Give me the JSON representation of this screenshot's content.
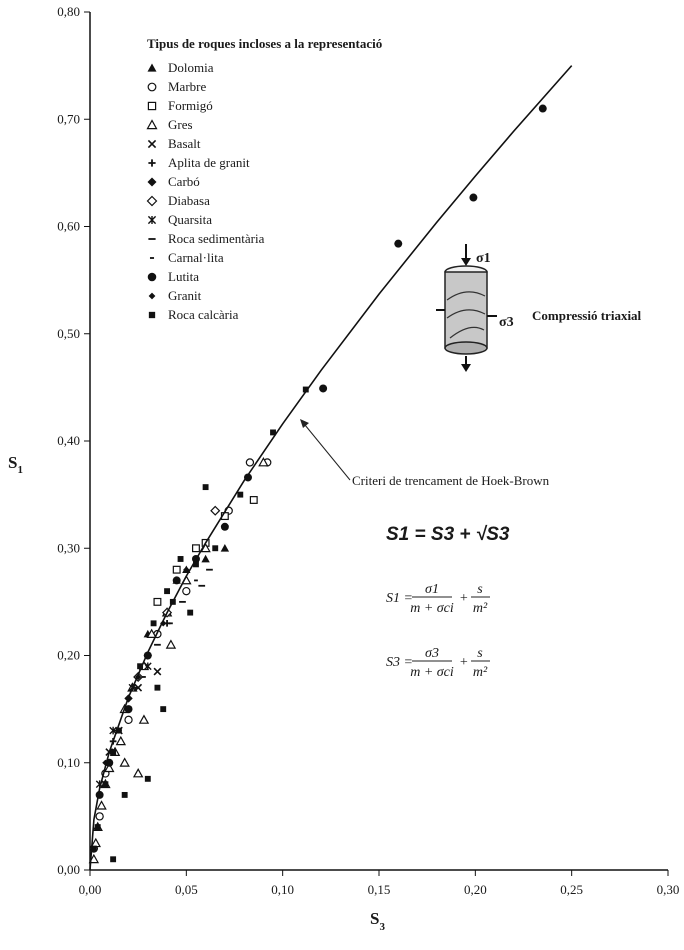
{
  "chart_data": {
    "type": "scatter",
    "title": "",
    "xlabel": "S",
    "xlabel_sub": "3",
    "ylabel": "S",
    "ylabel_sub": "1",
    "xlim": [
      0,
      0.3
    ],
    "ylim": [
      0,
      0.8
    ],
    "x_ticks": [
      "0,00",
      "0,05",
      "0,10",
      "0,15",
      "0,20",
      "0,25",
      "0,30"
    ],
    "y_ticks": [
      "0,00",
      "0,10",
      "0,20",
      "0,30",
      "0,40",
      "0,50",
      "0,60",
      "0,70",
      "0,80"
    ],
    "grid": false,
    "legend_title": "Tipus de roques incloses a la representació",
    "legend_position": "top-left",
    "series": [
      {
        "name": "Dolomia",
        "marker": "triangle-filled",
        "points": [
          [
            0.07,
            0.3
          ],
          [
            0.06,
            0.29
          ],
          [
            0.045,
            0.27
          ],
          [
            0.05,
            0.28
          ],
          [
            0.03,
            0.22
          ]
        ]
      },
      {
        "name": "Marbre",
        "marker": "circle-open",
        "points": [
          [
            0.083,
            0.38
          ],
          [
            0.092,
            0.38
          ],
          [
            0.072,
            0.335
          ],
          [
            0.05,
            0.26
          ],
          [
            0.035,
            0.22
          ],
          [
            0.02,
            0.14
          ],
          [
            0.008,
            0.09
          ],
          [
            0.005,
            0.05
          ],
          [
            0.002,
            0.02
          ]
        ]
      },
      {
        "name": "Formigó",
        "marker": "square-open",
        "points": [
          [
            0.085,
            0.345
          ],
          [
            0.07,
            0.33
          ],
          [
            0.055,
            0.3
          ],
          [
            0.06,
            0.305
          ],
          [
            0.045,
            0.28
          ],
          [
            0.035,
            0.25
          ]
        ]
      },
      {
        "name": "Gres",
        "marker": "triangle-open",
        "points": [
          [
            0.09,
            0.38
          ],
          [
            0.06,
            0.3
          ],
          [
            0.05,
            0.27
          ],
          [
            0.04,
            0.24
          ],
          [
            0.032,
            0.22
          ],
          [
            0.028,
            0.19
          ],
          [
            0.022,
            0.17
          ],
          [
            0.018,
            0.15
          ],
          [
            0.016,
            0.12
          ],
          [
            0.013,
            0.11
          ],
          [
            0.01,
            0.095
          ],
          [
            0.008,
            0.08
          ],
          [
            0.006,
            0.06
          ],
          [
            0.004,
            0.04
          ],
          [
            0.003,
            0.025
          ],
          [
            0.002,
            0.01
          ],
          [
            0.025,
            0.09
          ],
          [
            0.018,
            0.1
          ],
          [
            0.028,
            0.14
          ],
          [
            0.042,
            0.21
          ]
        ]
      },
      {
        "name": "Basalt",
        "marker": "x",
        "points": [
          [
            0.035,
            0.185
          ],
          [
            0.025,
            0.17
          ],
          [
            0.015,
            0.13
          ],
          [
            0.01,
            0.11
          ]
        ]
      },
      {
        "name": "Aplita de granit",
        "marker": "plus",
        "points": [
          [
            0.04,
            0.23
          ],
          [
            0.03,
            0.2
          ],
          [
            0.02,
            0.16
          ],
          [
            0.012,
            0.12
          ]
        ]
      },
      {
        "name": "Carbó",
        "marker": "diamond-filled",
        "points": [
          [
            0.03,
            0.2
          ],
          [
            0.02,
            0.16
          ]
        ]
      },
      {
        "name": "Diabasa",
        "marker": "diamond-open",
        "points": [
          [
            0.065,
            0.335
          ],
          [
            0.04,
            0.24
          ],
          [
            0.025,
            0.18
          ]
        ]
      },
      {
        "name": "Quarsita",
        "marker": "asterisk",
        "points": [
          [
            0.03,
            0.19
          ],
          [
            0.022,
            0.17
          ],
          [
            0.012,
            0.13
          ],
          [
            0.005,
            0.08
          ]
        ]
      },
      {
        "name": "Roca sedimentària",
        "marker": "dash-long",
        "points": [
          [
            0.062,
            0.28
          ],
          [
            0.058,
            0.265
          ],
          [
            0.048,
            0.25
          ],
          [
            0.035,
            0.21
          ],
          [
            0.024,
            0.17
          ],
          [
            0.014,
            0.13
          ]
        ]
      },
      {
        "name": "Carnal·lita",
        "marker": "dash-short",
        "points": [
          [
            0.055,
            0.27
          ],
          [
            0.042,
            0.23
          ],
          [
            0.028,
            0.18
          ]
        ]
      },
      {
        "name": "Lutita",
        "marker": "circle-filled",
        "points": [
          [
            0.235,
            0.71
          ],
          [
            0.199,
            0.627
          ],
          [
            0.16,
            0.584
          ],
          [
            0.121,
            0.449
          ],
          [
            0.082,
            0.366
          ],
          [
            0.07,
            0.32
          ],
          [
            0.055,
            0.29
          ],
          [
            0.045,
            0.27
          ],
          [
            0.03,
            0.2
          ],
          [
            0.02,
            0.15
          ],
          [
            0.01,
            0.1
          ],
          [
            0.005,
            0.07
          ]
        ]
      },
      {
        "name": "Granit",
        "marker": "diamond-filled-small",
        "points": [
          [
            0.05,
            0.28
          ],
          [
            0.038,
            0.23
          ],
          [
            0.025,
            0.18
          ],
          [
            0.015,
            0.13
          ],
          [
            0.008,
            0.1
          ]
        ]
      },
      {
        "name": "Roca calcària",
        "marker": "square-filled",
        "points": [
          [
            0.095,
            0.408
          ],
          [
            0.112,
            0.448
          ],
          [
            0.078,
            0.35
          ],
          [
            0.06,
            0.357
          ],
          [
            0.065,
            0.3
          ],
          [
            0.055,
            0.285
          ],
          [
            0.047,
            0.29
          ],
          [
            0.04,
            0.26
          ],
          [
            0.033,
            0.23
          ],
          [
            0.026,
            0.19
          ],
          [
            0.02,
            0.15
          ],
          [
            0.015,
            0.13
          ],
          [
            0.012,
            0.11
          ],
          [
            0.008,
            0.08
          ],
          [
            0.004,
            0.04
          ],
          [
            0.002,
            0.02
          ],
          [
            0.03,
            0.085
          ],
          [
            0.018,
            0.07
          ],
          [
            0.012,
            0.01
          ],
          [
            0.035,
            0.17
          ],
          [
            0.052,
            0.24
          ],
          [
            0.043,
            0.25
          ],
          [
            0.038,
            0.15
          ]
        ]
      }
    ],
    "curve": {
      "name": "Criteri de trencament de Hoek-Brown",
      "points": [
        [
          0,
          0.0
        ],
        [
          0.002,
          0.047
        ],
        [
          0.005,
          0.076
        ],
        [
          0.01,
          0.11
        ],
        [
          0.02,
          0.161
        ],
        [
          0.03,
          0.203
        ],
        [
          0.04,
          0.24
        ],
        [
          0.05,
          0.274
        ],
        [
          0.06,
          0.305
        ],
        [
          0.08,
          0.363
        ],
        [
          0.1,
          0.416
        ],
        [
          0.12,
          0.466
        ],
        [
          0.15,
          0.537
        ],
        [
          0.18,
          0.604
        ],
        [
          0.2,
          0.647
        ],
        [
          0.22,
          0.689
        ],
        [
          0.25,
          0.75
        ]
      ]
    }
  },
  "annotations": {
    "curve_label": "Criteri de trencament de Hoek-Brown",
    "triaxial_label": "Compressió triaxial",
    "sigma1": "σ1",
    "sigma3": "σ3",
    "formula_main_lhs": "S1",
    "formula_main": "S1 = S3 + √S3",
    "formula_s1_lhs": "S1 =",
    "formula_s1_num1": "σ1",
    "formula_s1_den1": "m + σci",
    "formula_s1_num2": "s",
    "formula_s1_den2": "m²",
    "formula_s3_lhs": "S3 =",
    "formula_s3_num1": "σ3",
    "formula_s3_den1": "m + σci",
    "formula_s3_num2": "s",
    "formula_s3_den2": "m²"
  }
}
